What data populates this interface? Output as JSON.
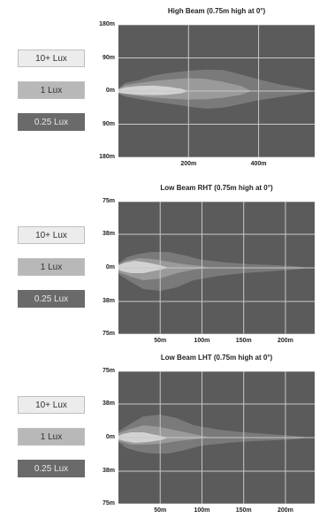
{
  "legend": [
    "10+ Lux",
    "1 Lux",
    "0.25 Lux"
  ],
  "chart_data": [
    {
      "type": "area",
      "title": "High Beam (0.75m high at 0°)",
      "y_ticks": [
        "180m",
        "90m",
        "0m",
        "90m",
        "180m"
      ],
      "x_ticks": [
        "200m",
        "400m"
      ],
      "xlim": [
        0,
        560
      ],
      "ylim": [
        -180,
        180
      ],
      "x_tick_values": [
        200,
        400
      ],
      "x_grid": [
        200,
        400
      ],
      "y_grid": [
        -180,
        -90,
        0,
        90,
        180
      ],
      "series": [
        {
          "name": "0.25 Lux",
          "x": [
            0,
            20,
            60,
            100,
            150,
            200,
            250,
            300,
            350,
            400,
            460,
            520,
            560,
            520,
            460,
            400,
            350,
            300,
            250,
            200,
            150,
            100,
            60,
            20,
            0
          ],
          "y": [
            8,
            22,
            30,
            42,
            50,
            55,
            58,
            57,
            45,
            32,
            18,
            8,
            0,
            -8,
            -16,
            -25,
            -35,
            -45,
            -48,
            -42,
            -35,
            -28,
            -22,
            -15,
            -8
          ]
        },
        {
          "name": "1 Lux",
          "x": [
            0,
            20,
            60,
            100,
            150,
            200,
            250,
            300,
            350,
            380,
            350,
            300,
            250,
            200,
            150,
            100,
            60,
            20,
            0
          ],
          "y": [
            6,
            16,
            22,
            27,
            32,
            35,
            33,
            25,
            14,
            0,
            -10,
            -18,
            -22,
            -23,
            -21,
            -18,
            -14,
            -9,
            -5
          ]
        },
        {
          "name": "10+ Lux",
          "x": [
            0,
            20,
            60,
            100,
            140,
            180,
            200,
            180,
            140,
            100,
            60,
            20,
            0
          ],
          "y": [
            4,
            10,
            14,
            15,
            12,
            6,
            0,
            -6,
            -10,
            -11,
            -10,
            -7,
            -4
          ]
        }
      ]
    },
    {
      "type": "area",
      "title": "Low Beam RHT (0.75m high at 0°)",
      "y_ticks": [
        "75m",
        "38m",
        "0m",
        "38m",
        "75m"
      ],
      "x_ticks": [
        "50m",
        "100m",
        "150m",
        "200m"
      ],
      "xlim": [
        0,
        235
      ],
      "ylim": [
        -75,
        75
      ],
      "x_tick_values": [
        50,
        100,
        150,
        200
      ],
      "x_grid": [
        50,
        100,
        150,
        200
      ],
      "y_grid": [
        -75,
        -38,
        0,
        38,
        75
      ],
      "series": [
        {
          "name": "0.25 Lux",
          "x": [
            0,
            10,
            25,
            40,
            60,
            80,
            100,
            130,
            160,
            190,
            210,
            230,
            210,
            180,
            150,
            120,
            90,
            70,
            50,
            30,
            15,
            0
          ],
          "y": [
            5,
            12,
            16,
            18,
            18,
            14,
            9,
            6,
            4,
            3,
            2,
            0,
            -2,
            -4,
            -6,
            -9,
            -14,
            -22,
            -26,
            -24,
            -16,
            -7
          ]
        },
        {
          "name": "1 Lux",
          "x": [
            0,
            10,
            25,
            40,
            60,
            80,
            100,
            110,
            90,
            70,
            50,
            30,
            15,
            0
          ],
          "y": [
            4,
            8,
            11,
            10,
            7,
            4,
            2,
            0,
            -2,
            -6,
            -12,
            -14,
            -10,
            -5
          ]
        },
        {
          "name": "10+ Lux",
          "x": [
            0,
            8,
            20,
            35,
            50,
            60,
            45,
            30,
            15,
            5,
            0
          ],
          "y": [
            3,
            6,
            8,
            6,
            3,
            0,
            -3,
            -6,
            -6,
            -4,
            -2
          ]
        }
      ]
    },
    {
      "type": "area",
      "title": "Low Beam LHT (0.75m high at 0°)",
      "y_ticks": [
        "75m",
        "38m",
        "0m",
        "38m",
        "75m"
      ],
      "x_ticks": [
        "50m",
        "100m",
        "150m",
        "200m"
      ],
      "xlim": [
        0,
        235
      ],
      "ylim": [
        -75,
        75
      ],
      "x_tick_values": [
        50,
        100,
        150,
        200
      ],
      "x_grid": [
        50,
        100,
        150,
        200
      ],
      "y_grid": [
        -75,
        -38,
        0,
        38,
        75
      ],
      "series": [
        {
          "name": "0.25 Lux",
          "x": [
            0,
            15,
            30,
            50,
            70,
            90,
            120,
            150,
            180,
            210,
            230,
            210,
            190,
            160,
            130,
            100,
            80,
            60,
            40,
            25,
            10,
            0
          ],
          "y": [
            7,
            16,
            24,
            26,
            22,
            14,
            9,
            6,
            4,
            2,
            0,
            -2,
            -3,
            -4,
            -6,
            -9,
            -14,
            -18,
            -18,
            -16,
            -12,
            -5
          ]
        },
        {
          "name": "1 Lux",
          "x": [
            0,
            15,
            30,
            50,
            70,
            90,
            110,
            90,
            70,
            50,
            30,
            15,
            0
          ],
          "y": [
            5,
            10,
            14,
            12,
            8,
            4,
            0,
            -2,
            -4,
            -7,
            -8,
            -8,
            -4
          ]
        },
        {
          "name": "10+ Lux",
          "x": [
            0,
            5,
            15,
            30,
            45,
            60,
            50,
            35,
            20,
            8,
            0
          ],
          "y": [
            2,
            4,
            6,
            6,
            3,
            0,
            -3,
            -5,
            -6,
            -4,
            -2
          ]
        }
      ]
    }
  ]
}
